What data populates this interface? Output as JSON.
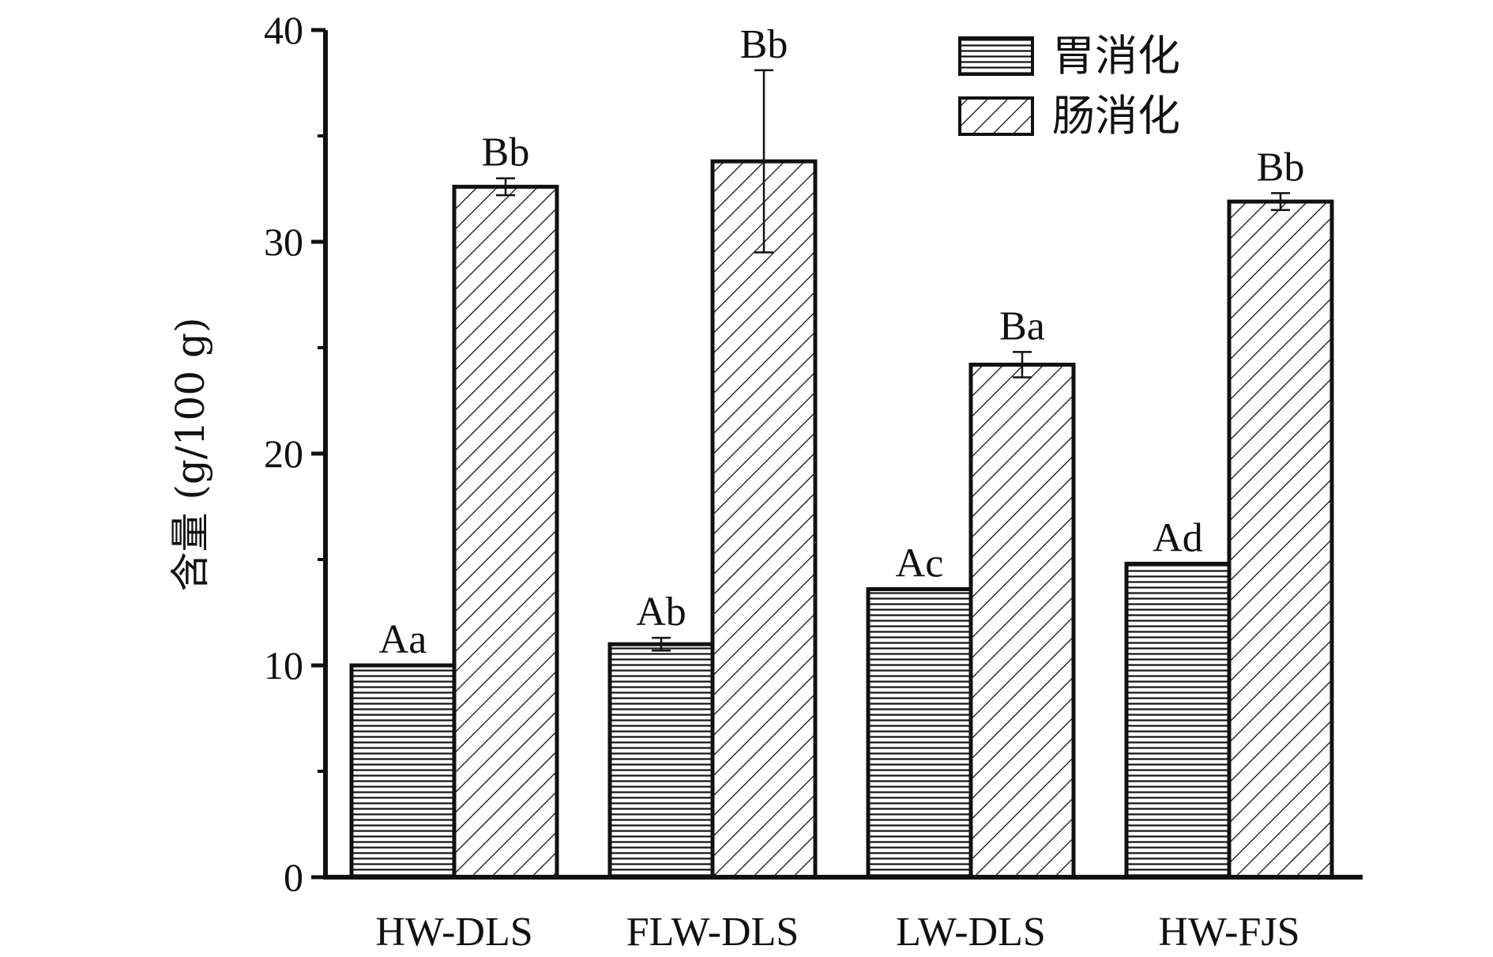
{
  "chart_data": {
    "type": "bar",
    "title": "",
    "xlabel": "",
    "ylabel": "含量 (g/100 g)",
    "ylim": [
      0,
      40
    ],
    "yticks": [
      0,
      10,
      20,
      30,
      40
    ],
    "grid": false,
    "legend_position": "top-right",
    "categories": [
      "HW-DLS",
      "FLW-DLS",
      "LW-DLS",
      "HW-FJS"
    ],
    "series": [
      {
        "name": "胃消化",
        "pattern": "horizontal-lines",
        "values": [
          10.0,
          11.0,
          13.6,
          14.8
        ],
        "errors": [
          0.0,
          0.3,
          0.0,
          0.0
        ],
        "labels": [
          "Aa",
          "Ab",
          "Ac",
          "Ad"
        ]
      },
      {
        "name": "肠消化",
        "pattern": "diagonal-hatch",
        "values": [
          32.6,
          33.8,
          24.2,
          31.9
        ],
        "errors": [
          0.4,
          4.3,
          0.6,
          0.4
        ],
        "labels": [
          "Bb",
          "Bb",
          "Ba",
          "Bb"
        ]
      }
    ],
    "colors": {
      "stroke": "#111111",
      "fill": "#ffffff"
    }
  }
}
